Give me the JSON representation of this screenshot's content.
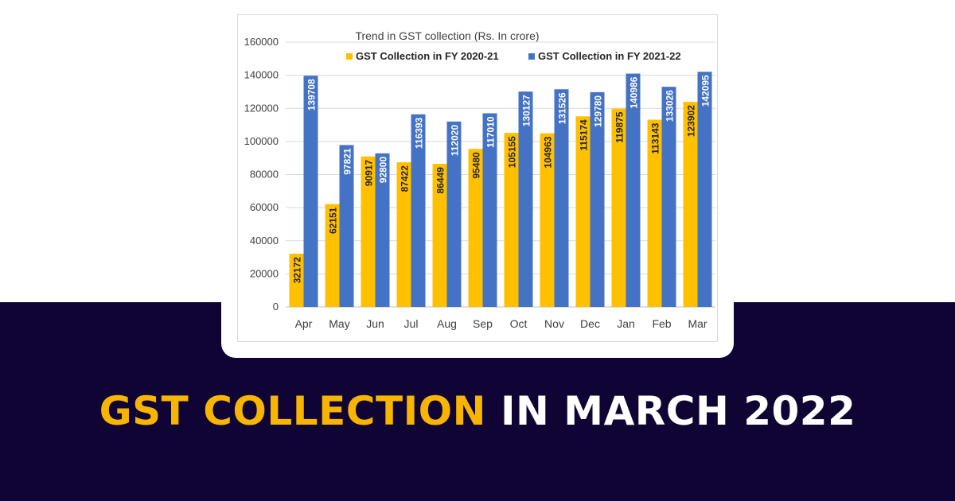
{
  "colors": {
    "series_2020": "#ffc000",
    "series_2021": "#4472c4",
    "band": "#0f0433",
    "headline_accent": "#f7b500",
    "headline_rest": "#ffffff"
  },
  "headline": {
    "accent": "GST COLLECTION",
    "rest": "IN MARCH 2022"
  },
  "chart_data": {
    "type": "bar",
    "title": "Trend in GST collection (Rs. In crore)",
    "categories": [
      "Apr",
      "May",
      "Jun",
      "Jul",
      "Aug",
      "Sep",
      "Oct",
      "Nov",
      "Dec",
      "Jan",
      "Feb",
      "Mar"
    ],
    "series": [
      {
        "name": "GST Collection in FY 2020-21",
        "color": "#ffc000",
        "values": [
          32172,
          62151,
          90917,
          87422,
          86449,
          95480,
          105155,
          104963,
          115174,
          119875,
          113143,
          123902
        ]
      },
      {
        "name": "GST Collection in FY 2021-22",
        "color": "#4472c4",
        "values": [
          139708,
          97821,
          92800,
          116393,
          112020,
          117010,
          130127,
          131526,
          129780,
          140986,
          133026,
          142095
        ]
      }
    ],
    "yticks": [
      0,
      20000,
      40000,
      60000,
      80000,
      100000,
      120000,
      140000,
      160000
    ],
    "ylim": [
      0,
      160000
    ],
    "grid": true,
    "legend": "top",
    "data_labels": "inside-bar-vertical"
  }
}
